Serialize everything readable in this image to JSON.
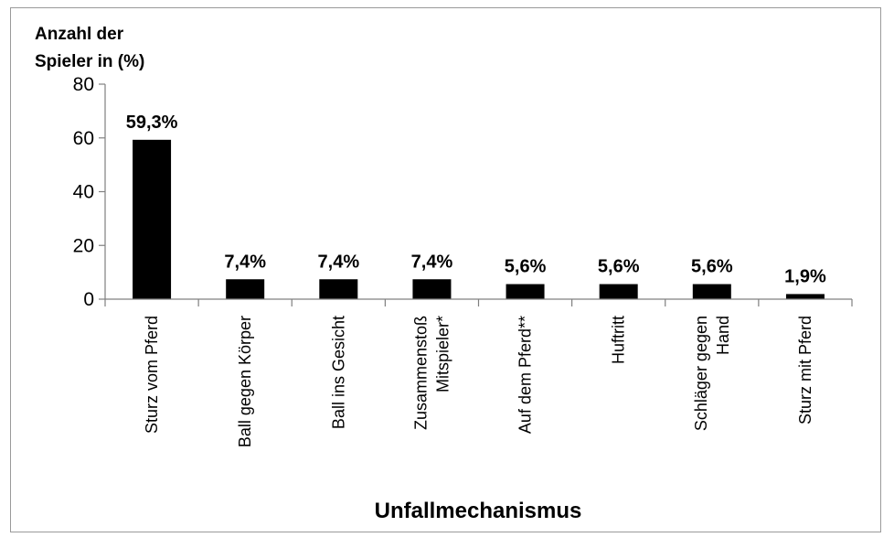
{
  "chart_data": {
    "type": "bar",
    "title": "",
    "ylabel_lines": [
      "Anzahl der",
      "Spieler in (%)"
    ],
    "xlabel": "Unfallmechanismus",
    "ylim": [
      0,
      80
    ],
    "yticks": [
      0,
      20,
      40,
      60,
      80
    ],
    "categories": [
      [
        "Sturz vom Pferd"
      ],
      [
        "Ball gegen Körper"
      ],
      [
        "Ball ins Gesicht"
      ],
      [
        "Zusammenstoß",
        "Mitspieler*"
      ],
      [
        "Auf dem Pferd**"
      ],
      [
        "Huftritt"
      ],
      [
        "Schläger gegen",
        "Hand"
      ],
      [
        "Sturz mit Pferd"
      ]
    ],
    "values": [
      59.3,
      7.4,
      7.4,
      7.4,
      5.6,
      5.6,
      5.6,
      1.9
    ],
    "data_labels": [
      "59,3%",
      "7,4%",
      "7,4%",
      "7,4%",
      "5,6%",
      "5,6%",
      "5,6%",
      "1,9%"
    ],
    "bar_color": "#000000",
    "grid": false,
    "legend": "none"
  }
}
